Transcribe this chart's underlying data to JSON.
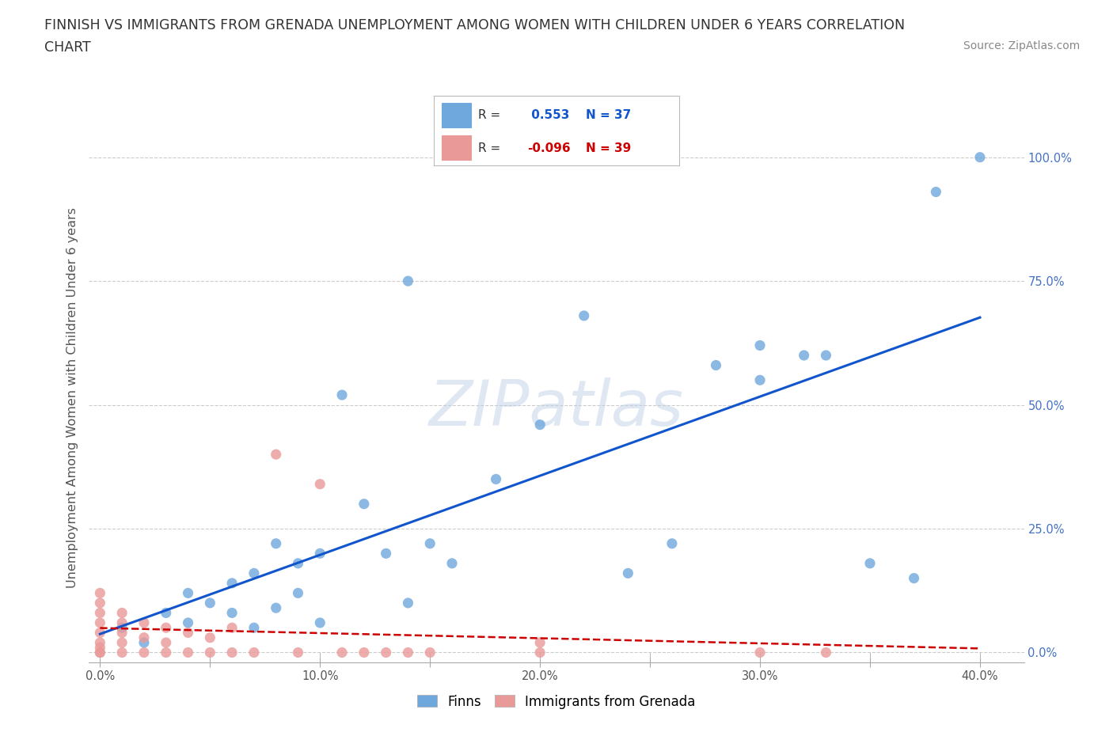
{
  "title_line1": "FINNISH VS IMMIGRANTS FROM GRENADA UNEMPLOYMENT AMONG WOMEN WITH CHILDREN UNDER 6 YEARS CORRELATION",
  "title_line2": "CHART",
  "source": "Source: ZipAtlas.com",
  "ylabel": "Unemployment Among Women with Children Under 6 years",
  "xlim": [
    -0.005,
    0.42
  ],
  "ylim": [
    -0.02,
    1.05
  ],
  "xtick_labels": [
    "0.0%",
    "",
    "10.0%",
    "",
    "20.0%",
    "",
    "30.0%",
    "",
    "40.0%"
  ],
  "xtick_values": [
    0.0,
    0.05,
    0.1,
    0.15,
    0.2,
    0.25,
    0.3,
    0.35,
    0.4
  ],
  "ytick_labels": [
    "0.0%",
    "25.0%",
    "50.0%",
    "75.0%",
    "100.0%"
  ],
  "ytick_values": [
    0.0,
    0.25,
    0.5,
    0.75,
    1.0
  ],
  "finns_color": "#6fa8dc",
  "grenada_color": "#ea9999",
  "finns_trend_color": "#1155cc",
  "grenada_trend_color": "#cc0000",
  "R_finns": 0.553,
  "N_finns": 37,
  "R_grenada": -0.096,
  "N_grenada": 39,
  "background_color": "#ffffff",
  "grid_color": "#cccccc",
  "finns_x": [
    0.01,
    0.02,
    0.03,
    0.04,
    0.04,
    0.05,
    0.06,
    0.06,
    0.07,
    0.07,
    0.08,
    0.08,
    0.09,
    0.09,
    0.1,
    0.1,
    0.11,
    0.12,
    0.13,
    0.14,
    0.15,
    0.16,
    0.18,
    0.2,
    0.22,
    0.24,
    0.26,
    0.28,
    0.3,
    0.32,
    0.33,
    0.35,
    0.37,
    0.38,
    0.4,
    0.14,
    0.3
  ],
  "finns_y": [
    0.05,
    0.02,
    0.08,
    0.12,
    0.06,
    0.1,
    0.14,
    0.08,
    0.05,
    0.16,
    0.09,
    0.22,
    0.12,
    0.18,
    0.06,
    0.2,
    0.52,
    0.3,
    0.2,
    0.1,
    0.22,
    0.18,
    0.35,
    0.46,
    0.68,
    0.16,
    0.22,
    0.58,
    0.62,
    0.6,
    0.6,
    0.18,
    0.15,
    0.93,
    1.0,
    0.75,
    0.55
  ],
  "grenada_x": [
    0.0,
    0.0,
    0.0,
    0.0,
    0.0,
    0.0,
    0.0,
    0.0,
    0.0,
    0.01,
    0.01,
    0.01,
    0.01,
    0.01,
    0.02,
    0.02,
    0.02,
    0.03,
    0.03,
    0.03,
    0.04,
    0.04,
    0.05,
    0.05,
    0.06,
    0.06,
    0.07,
    0.08,
    0.09,
    0.1,
    0.11,
    0.12,
    0.13,
    0.14,
    0.15,
    0.2,
    0.2,
    0.3,
    0.33
  ],
  "grenada_y": [
    0.0,
    0.0,
    0.01,
    0.02,
    0.04,
    0.06,
    0.08,
    0.1,
    0.12,
    0.0,
    0.02,
    0.04,
    0.06,
    0.08,
    0.0,
    0.03,
    0.06,
    0.0,
    0.02,
    0.05,
    0.0,
    0.04,
    0.0,
    0.03,
    0.0,
    0.05,
    0.0,
    0.4,
    0.0,
    0.34,
    0.0,
    0.0,
    0.0,
    0.0,
    0.0,
    0.0,
    0.02,
    0.0,
    0.0
  ]
}
